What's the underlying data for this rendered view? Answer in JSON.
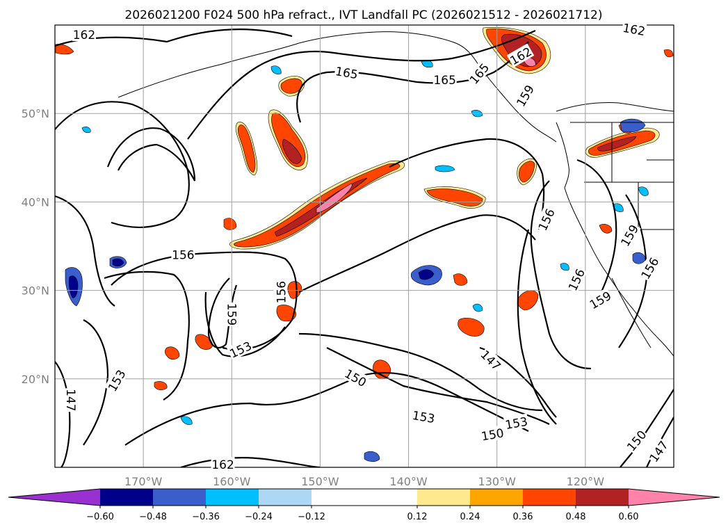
{
  "chart_data": {
    "type": "heatmap",
    "title": "2026021200 F024 500 hPa refract., IVT Landfall PC (2026021512 - 2026021712)",
    "lon_range": [
      -180,
      -110
    ],
    "lat_range": [
      10,
      60
    ],
    "x_ticks": [
      {
        "lon": -170,
        "label": "170°W"
      },
      {
        "lon": -160,
        "label": "160°W"
      },
      {
        "lon": -150,
        "label": "150°W"
      },
      {
        "lon": -140,
        "label": "140°W"
      },
      {
        "lon": -130,
        "label": "130°W"
      },
      {
        "lon": -120,
        "label": "120°W"
      }
    ],
    "y_ticks": [
      {
        "lat": 20,
        "label": "20°N"
      },
      {
        "lat": 30,
        "label": "30°N"
      },
      {
        "lat": 40,
        "label": "40°N"
      },
      {
        "lat": 50,
        "label": "50°N"
      }
    ],
    "grid": true,
    "colorbar": {
      "location": "bottom",
      "extend": "both",
      "boundaries": [
        -0.72,
        -0.6,
        -0.48,
        -0.36,
        -0.24,
        -0.12,
        0.12,
        0.24,
        0.36,
        0.48,
        0.6,
        0.72
      ],
      "colors": [
        "#9b30d0",
        "#00008b",
        "#3a5fcd",
        "#00bfff",
        "#add8f5",
        "#ffffff",
        "#ffe98f",
        "#ffa500",
        "#ff4500",
        "#b22222",
        "#ff82ab"
      ],
      "tick_values": [
        -0.6,
        -0.48,
        -0.36,
        -0.24,
        -0.12,
        0.12,
        0.24,
        0.36,
        0.48,
        0.6
      ],
      "tick_labels": [
        "−0.60",
        "−0.48",
        "−0.36",
        "−0.24",
        "−0.12",
        "0.12",
        "0.24",
        "0.36",
        "0.48",
        "0.60"
      ]
    },
    "contour_labels": [
      {
        "text": "162",
        "lon": -176.7,
        "lat": 58.9,
        "rot": 0
      },
      {
        "text": "165",
        "lon": -147.0,
        "lat": 54.6,
        "rot": 10
      },
      {
        "text": "165",
        "lon": -135.9,
        "lat": 53.8,
        "rot": 0
      },
      {
        "text": "165",
        "lon": -132.0,
        "lat": 54.5,
        "rot": -50
      },
      {
        "text": "162",
        "lon": -127.3,
        "lat": 56.5,
        "rot": -30
      },
      {
        "text": "159",
        "lon": -126.8,
        "lat": 52.0,
        "rot": -60
      },
      {
        "text": "162",
        "lon": -114.5,
        "lat": 59.5,
        "rot": 10
      },
      {
        "text": "156",
        "lon": -165.5,
        "lat": 34.0,
        "rot": 0
      },
      {
        "text": "156",
        "lon": -154.4,
        "lat": 29.8,
        "rot": -90
      },
      {
        "text": "159",
        "lon": -160.0,
        "lat": 27.3,
        "rot": 90
      },
      {
        "text": "153",
        "lon": -159.0,
        "lat": 23.3,
        "rot": -25
      },
      {
        "text": "153",
        "lon": -173.0,
        "lat": 19.8,
        "rot": -60
      },
      {
        "text": "147",
        "lon": -178.2,
        "lat": 17.6,
        "rot": 90
      },
      {
        "text": "150",
        "lon": -146.0,
        "lat": 20.1,
        "rot": 30
      },
      {
        "text": "147",
        "lon": -130.7,
        "lat": 22.1,
        "rot": 45
      },
      {
        "text": "153",
        "lon": -138.3,
        "lat": 15.7,
        "rot": 10
      },
      {
        "text": "153",
        "lon": -127.8,
        "lat": 15.0,
        "rot": -10
      },
      {
        "text": "150",
        "lon": -130.5,
        "lat": 13.7,
        "rot": -10
      },
      {
        "text": "156",
        "lon": -124.4,
        "lat": 38.0,
        "rot": -65
      },
      {
        "text": "156",
        "lon": -121.0,
        "lat": 31.2,
        "rot": -65
      },
      {
        "text": "159",
        "lon": -118.3,
        "lat": 28.9,
        "rot": -30
      },
      {
        "text": "159",
        "lon": -115.0,
        "lat": 36.2,
        "rot": -60
      },
      {
        "text": "156",
        "lon": -112.7,
        "lat": 32.5,
        "rot": -60
      },
      {
        "text": "150",
        "lon": -114.2,
        "lat": 13.0,
        "rot": -50
      },
      {
        "text": "147",
        "lon": -111.7,
        "lat": 11.8,
        "rot": -55
      },
      {
        "text": "162",
        "lon": -161.0,
        "lat": 10.3,
        "rot": 0
      }
    ]
  }
}
